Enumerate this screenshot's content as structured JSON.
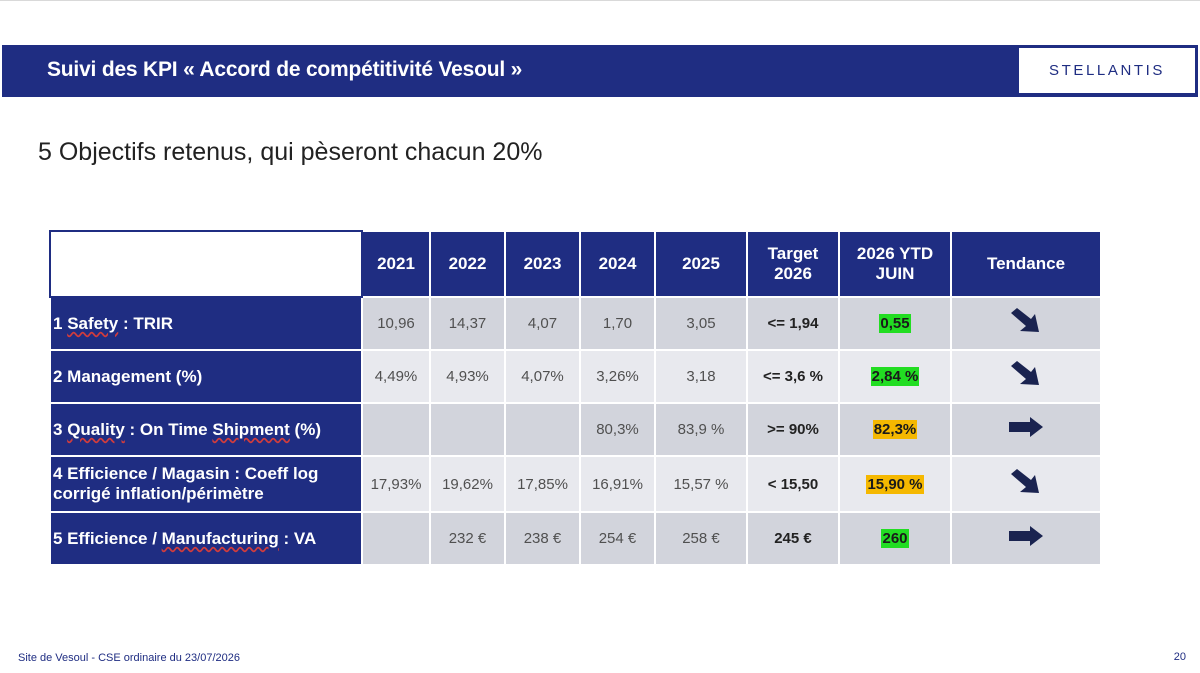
{
  "header": {
    "title": "Suivi des KPI « Accord de compétitivité  Vesoul »",
    "logo_text": "STELLANTIS"
  },
  "subtitle": "5 Objectifs retenus, qui pèseront chacun 20%",
  "table": {
    "columns": [
      "2021",
      "2022",
      "2023",
      "2024",
      "2025",
      "Target 2026",
      "2026 YTD JUIN",
      "Tendance"
    ],
    "rows": [
      {
        "label_parts": [
          "1 ",
          "Safety",
          " : TRIR"
        ],
        "values": [
          "10,96",
          "14,37",
          "4,07",
          "1,70",
          "3,05"
        ],
        "target": "<= 1,94",
        "ytd": "0,55",
        "ytd_color": "#22dd22",
        "trend": "arrow-down-right"
      },
      {
        "label_parts": [
          "2 Management (%)",
          "",
          ""
        ],
        "values": [
          "4,49%",
          "4,93%",
          "4,07%",
          "3,26%",
          "3,18"
        ],
        "target": "<= 3,6 %",
        "ytd": "2,84 %",
        "ytd_color": "#22dd22",
        "trend": "arrow-down-right"
      },
      {
        "label_parts": [
          "3 ",
          "Quality",
          " : On Time ",
          "Shipment",
          " (%)"
        ],
        "values": [
          "",
          "",
          "",
          "80,3%",
          "83,9 %"
        ],
        "target": ">= 90%",
        "ytd": "82,3%",
        "ytd_color": "#f5b800",
        "trend": "arrow-right"
      },
      {
        "label_parts": [
          "4 Efficience / Magasin : Coeff log corrigé inflation/périmètre",
          "",
          ""
        ],
        "values": [
          "17,93%",
          "19,62%",
          "17,85%",
          "16,91%",
          "15,57 %"
        ],
        "target": "< 15,50",
        "ytd": "15,90 %",
        "ytd_color": "#f5b800",
        "trend": "arrow-down-right"
      },
      {
        "label_parts": [
          "5 Efficience / ",
          "Manufacturing",
          " : VA"
        ],
        "values": [
          "",
          "232 €",
          "238 €",
          "254 €",
          "258 €"
        ],
        "target": "245 €",
        "ytd": "260",
        "ytd_color": "#22dd22",
        "trend": "arrow-right"
      }
    ]
  },
  "footer": {
    "left": "Site de Vesoul - CSE ordinaire du 23/07/2026",
    "page_number": "20"
  },
  "colors": {
    "brand_navy": "#1f2d82",
    "green": "#22dd22",
    "orange": "#f5b800"
  }
}
